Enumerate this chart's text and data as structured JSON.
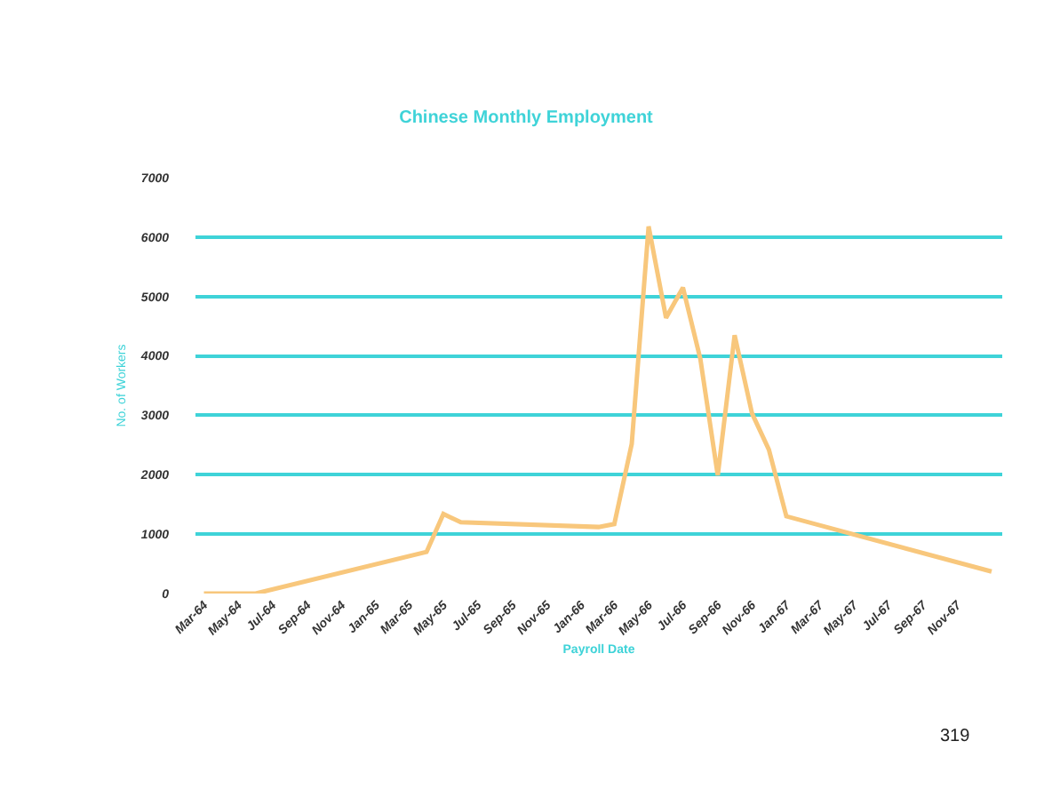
{
  "chart_data": {
    "type": "line",
    "title": "Chinese Monthly Employment",
    "xlabel": "Payroll Date",
    "ylabel": "No. of Workers",
    "x": [
      "1964-03",
      "1964-06",
      "1965-04",
      "1965-05",
      "1965-06",
      "1966-02",
      "1966-03",
      "1966-04",
      "1966-05",
      "1966-06",
      "1966-07",
      "1966-08",
      "1966-09",
      "1966-10",
      "1966-11",
      "1966-12",
      "1967-01",
      "1968-01"
    ],
    "series": [
      {
        "color": "#f8c77c",
        "values": [
          0,
          0,
          700,
          1340,
          1200,
          1120,
          1170,
          2520,
          6180,
          4640,
          5150,
          3950,
          1990,
          4350,
          3030,
          2420,
          1300,
          370
        ]
      }
    ],
    "xlim": [
      "1964-02-15",
      "1968-01-20"
    ],
    "xticks": [
      {
        "value": "1964-03",
        "label": "Mar-64"
      },
      {
        "value": "1964-05",
        "label": "May-64"
      },
      {
        "value": "1964-07",
        "label": "Jul-64"
      },
      {
        "value": "1964-09",
        "label": "Sep-64"
      },
      {
        "value": "1964-11",
        "label": "Nov-64"
      },
      {
        "value": "1965-01",
        "label": "Jan-65"
      },
      {
        "value": "1965-03",
        "label": "Mar-65"
      },
      {
        "value": "1965-05",
        "label": "May-65"
      },
      {
        "value": "1965-07",
        "label": "Jul-65"
      },
      {
        "value": "1965-09",
        "label": "Sep-65"
      },
      {
        "value": "1965-11",
        "label": "Nov-65"
      },
      {
        "value": "1966-01",
        "label": "Jan-66"
      },
      {
        "value": "1966-03",
        "label": "Mar-66"
      },
      {
        "value": "1966-05",
        "label": "May-66"
      },
      {
        "value": "1966-07",
        "label": "Jul-66"
      },
      {
        "value": "1966-09",
        "label": "Sep-66"
      },
      {
        "value": "1966-11",
        "label": "Nov-66"
      },
      {
        "value": "1967-01",
        "label": "Jan-67"
      },
      {
        "value": "1967-03",
        "label": "Mar-67"
      },
      {
        "value": "1967-05",
        "label": "May-67"
      },
      {
        "value": "1967-07",
        "label": "Jul-67"
      },
      {
        "value": "1967-09",
        "label": "Sep-67"
      },
      {
        "value": "1967-11",
        "label": "Nov-67"
      }
    ],
    "ylim": [
      0,
      7000
    ],
    "yticks": [
      0,
      1000,
      2000,
      3000,
      4000,
      5000,
      6000,
      7000
    ],
    "grid": "y",
    "legend": false,
    "marker": "none",
    "line_style": "solid",
    "annotations": [
      "319"
    ]
  }
}
